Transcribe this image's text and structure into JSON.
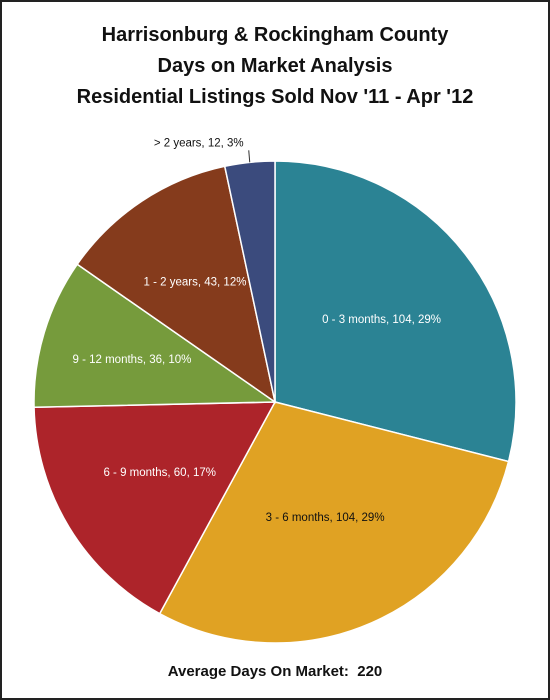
{
  "title": {
    "line1": "Harrisonburg & Rockingham County",
    "line2": "Days on Market Analysis",
    "line3": "Residential Listings Sold Nov '11 - Apr '12"
  },
  "footer": {
    "label": "Average Days On Market:",
    "value": "220"
  },
  "chart_data": {
    "type": "pie",
    "title": "Harrisonburg & Rockingham County Days on Market Analysis Residential Listings Sold Nov '11 - Apr '12",
    "slices": [
      {
        "name": "0 - 3 months",
        "value": 104,
        "percent": 29,
        "label": "0 - 3 months, 104, 29%",
        "color": "#2b8394"
      },
      {
        "name": "3 - 6 months",
        "value": 104,
        "percent": 29,
        "label": "3 - 6 months, 104, 29%",
        "color": "#e0a223"
      },
      {
        "name": "6 - 9 months",
        "value": 60,
        "percent": 17,
        "label": "6 - 9 months, 60, 17%",
        "color": "#ad242a"
      },
      {
        "name": "9 - 12 months",
        "value": 36,
        "percent": 10,
        "label": "9 - 12 months, 36, 10%",
        "color": "#769b3c"
      },
      {
        "name": "1 - 2 years",
        "value": 43,
        "percent": 12,
        "label": "1 - 2 years, 43, 12%",
        "color": "#853b1c"
      },
      {
        "name": "> 2 years",
        "value": 12,
        "percent": 3,
        "label": "> 2 years, 12, 3%",
        "color": "#3b4b7d"
      }
    ]
  }
}
